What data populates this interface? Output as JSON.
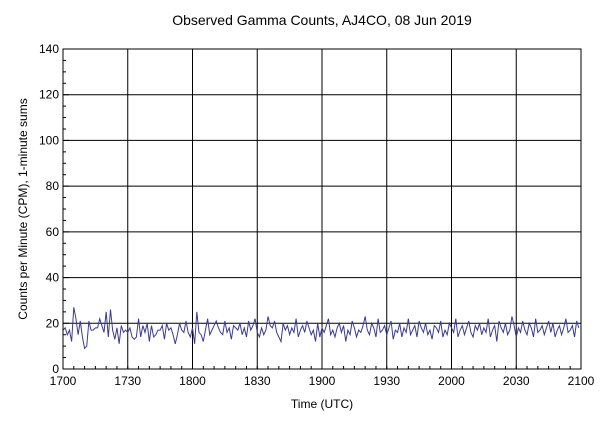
{
  "chart_data": {
    "type": "line",
    "title": "Observed Gamma Counts, AJ4CO, 08 Jun 2019",
    "xlabel": "Time (UTC)",
    "ylabel": "Counts per Minute (CPM), 1-minute sums",
    "xlim": [
      "17:00",
      "21:00"
    ],
    "ylim": [
      0,
      140
    ],
    "x_tick_labels": [
      "1700",
      "1730",
      "1800",
      "1830",
      "1900",
      "1930",
      "2000",
      "2030",
      "2100"
    ],
    "y_ticks": [
      0,
      20,
      40,
      60,
      80,
      100,
      120,
      140
    ],
    "grid": true,
    "series": [
      {
        "color": "#3a3a9a",
        "x_start": "17:00",
        "x_step_minutes": 1,
        "values": [
          17,
          18,
          15,
          17,
          12,
          27,
          22,
          15,
          21,
          14,
          9,
          10,
          21,
          17,
          17,
          18,
          18,
          22,
          19,
          16,
          25,
          14,
          26,
          17,
          13,
          18,
          11,
          19,
          16,
          17,
          16,
          18,
          14,
          13,
          14,
          22,
          14,
          19,
          16,
          20,
          12,
          19,
          14,
          15,
          17,
          17,
          19,
          13,
          20,
          17,
          18,
          15,
          11,
          15,
          20,
          17,
          16,
          21,
          16,
          14,
          18,
          11,
          25,
          16,
          15,
          12,
          17,
          22,
          15,
          17,
          19,
          21,
          18,
          16,
          15,
          21,
          16,
          18,
          13,
          19,
          18,
          17,
          20,
          15,
          18,
          14,
          21,
          17,
          19,
          22,
          16,
          14,
          18,
          15,
          17,
          23,
          19,
          18,
          21,
          16,
          14,
          12,
          20,
          17,
          19,
          15,
          18,
          16,
          22,
          14,
          17,
          19,
          16,
          21,
          18,
          15,
          17,
          12,
          20,
          14,
          18,
          16,
          19,
          22,
          15,
          17,
          14,
          18,
          20,
          16,
          19,
          12,
          17,
          15,
          21,
          18,
          14,
          17,
          16,
          19,
          23,
          17,
          15,
          20,
          18,
          14,
          22,
          16,
          17,
          19,
          15,
          18,
          21,
          13,
          17,
          16,
          20,
          14,
          18,
          16,
          22,
          15,
          17,
          19,
          14,
          21,
          18,
          16,
          20,
          15,
          17,
          13,
          19,
          18,
          16,
          21,
          14,
          17,
          15,
          20,
          18,
          16,
          22,
          14,
          17,
          19,
          15,
          18,
          21,
          16,
          14,
          19,
          17,
          20,
          15,
          18,
          16,
          22,
          14,
          17,
          19,
          12,
          21,
          18,
          16,
          20,
          15,
          17,
          23,
          19,
          14,
          18,
          16,
          21,
          17,
          15,
          20,
          18,
          14,
          22,
          16,
          17,
          19,
          15,
          18,
          21,
          16,
          20,
          14,
          17,
          19,
          15,
          18,
          22,
          16,
          17,
          19,
          14,
          21,
          18
        ]
      }
    ]
  }
}
